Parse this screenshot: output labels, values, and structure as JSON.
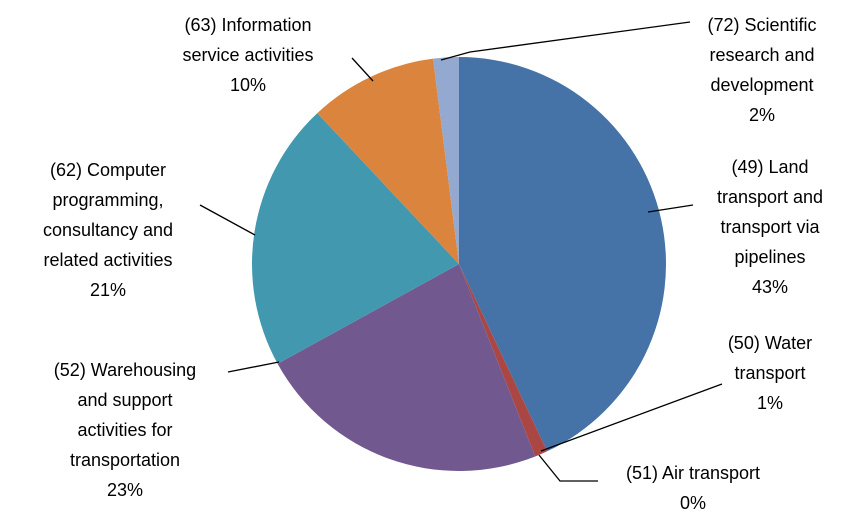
{
  "chart_data": {
    "type": "pie",
    "categories": [
      "(49) Land transport and transport via pipelines",
      "(50) Water transport",
      "(51) Air transport",
      "(52) Warehousing and support activities for transportation",
      "(62) Computer programming, consultancy and related activities",
      "(63) Information service activities",
      "(72) Scientific research and development"
    ],
    "values": [
      43,
      1,
      0,
      23,
      21,
      10,
      2
    ],
    "value_labels": [
      "43%",
      "1%",
      "0%",
      "23%",
      "21%",
      "10%",
      "2%"
    ],
    "colors": [
      "#4572a7",
      "#aa4643",
      "#89a54e",
      "#71588f",
      "#4198af",
      "#db843d",
      "#93a9cf"
    ]
  }
}
